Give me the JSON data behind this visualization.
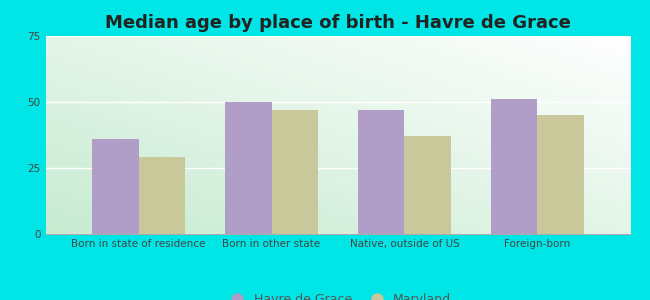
{
  "title": "Median age by place of birth - Havre de Grace",
  "categories": [
    "Born in state of residence",
    "Born in other state",
    "Native, outside of US",
    "Foreign-born"
  ],
  "havre_values": [
    36,
    50,
    47,
    51
  ],
  "maryland_values": [
    29,
    47,
    37,
    45
  ],
  "havre_color": "#b09dc8",
  "maryland_color": "#c8c89a",
  "ylim": [
    0,
    75
  ],
  "yticks": [
    0,
    25,
    50,
    75
  ],
  "bar_width": 0.35,
  "outer_bg": "#00e5e5",
  "legend_havre": "Havre de Grace",
  "legend_maryland": "Maryland",
  "title_fontsize": 13,
  "tick_fontsize": 7.5,
  "legend_fontsize": 9,
  "grid_color": "#dddddd",
  "gradient_top": "#f0f8f4",
  "gradient_bottom": "#d8f0e4"
}
